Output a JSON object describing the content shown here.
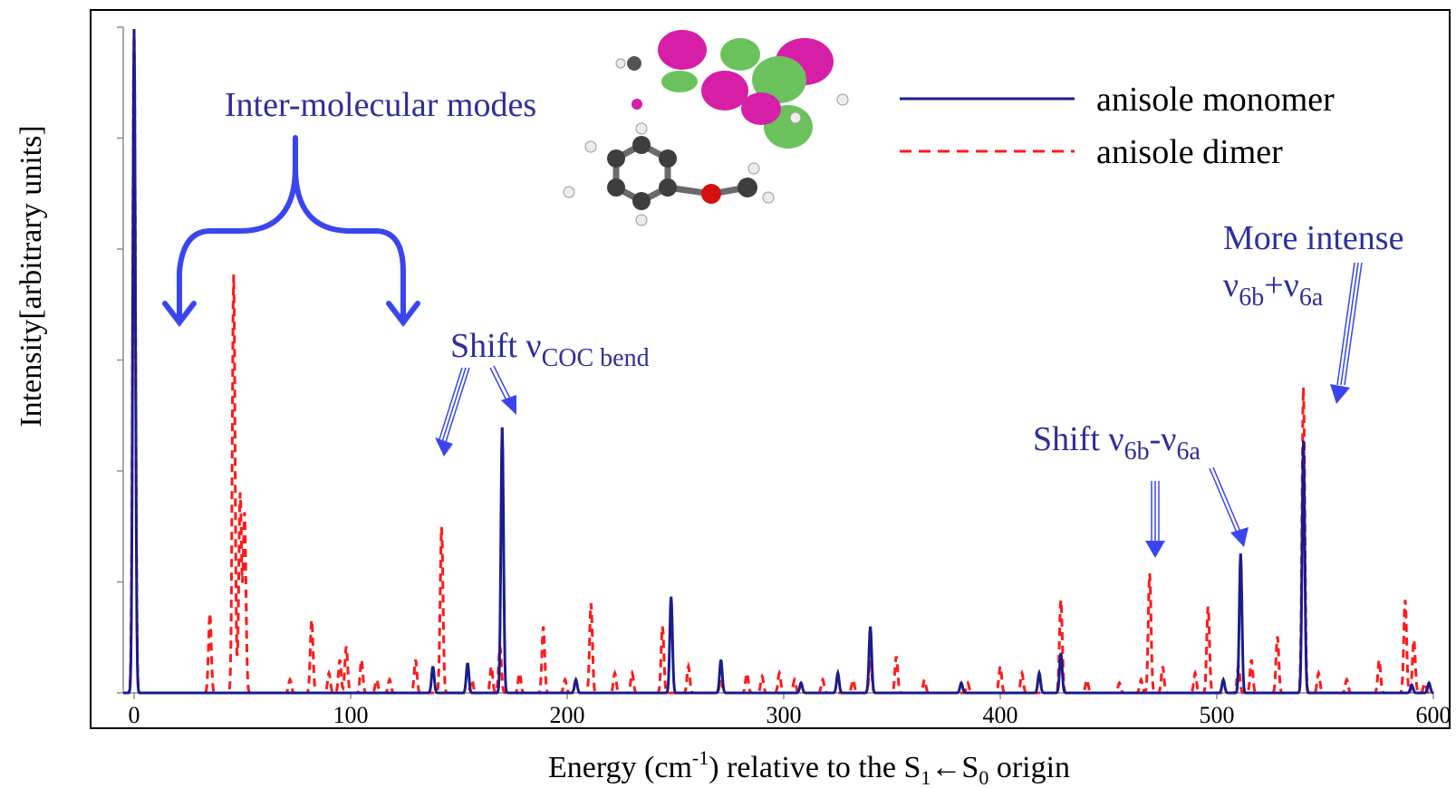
{
  "chart_data": {
    "type": "line",
    "ylabel": "Intensity[arbitrary units]",
    "xlabel": {
      "text": "Energy (cm",
      "sup": "-1",
      "mid": ") relative to the S",
      "sub1": "1",
      "arrow": "←S",
      "sub0": "0",
      "end": " origin"
    },
    "xlim": [
      -5,
      600
    ],
    "ylim": [
      0,
      1.0
    ],
    "xticks": [
      0,
      100,
      200,
      300,
      400,
      500,
      600
    ],
    "grid": false,
    "legend_position": "top-right",
    "series": [
      {
        "name": "anisole monomer",
        "color": "#1c1c8c",
        "dash": "solid",
        "peaks": [
          [
            0,
            1.0
          ],
          [
            138,
            0.04
          ],
          [
            154,
            0.045
          ],
          [
            170,
            0.4
          ],
          [
            204,
            0.02
          ],
          [
            248,
            0.145
          ],
          [
            271,
            0.05
          ],
          [
            308,
            0.015
          ],
          [
            325,
            0.03
          ],
          [
            340,
            0.1
          ],
          [
            382,
            0.015
          ],
          [
            418,
            0.03
          ],
          [
            428,
            0.06
          ],
          [
            503,
            0.02
          ],
          [
            511,
            0.21
          ],
          [
            540,
            0.38
          ],
          [
            590,
            0.012
          ],
          [
            598,
            0.015
          ]
        ]
      },
      {
        "name": "anisole dimer",
        "color": "#ff1a1a",
        "dash": "dashed",
        "peaks": [
          [
            0,
            1.0
          ],
          [
            35,
            0.12
          ],
          [
            46,
            0.63
          ],
          [
            49,
            0.3
          ],
          [
            51,
            0.27
          ],
          [
            72,
            0.02
          ],
          [
            82,
            0.11
          ],
          [
            90,
            0.03
          ],
          [
            95,
            0.05
          ],
          [
            98,
            0.07
          ],
          [
            105,
            0.05
          ],
          [
            112,
            0.02
          ],
          [
            118,
            0.02
          ],
          [
            130,
            0.05
          ],
          [
            142,
            0.25
          ],
          [
            156,
            0.02
          ],
          [
            165,
            0.04
          ],
          [
            169,
            0.07
          ],
          [
            178,
            0.03
          ],
          [
            189,
            0.1
          ],
          [
            199,
            0.02
          ],
          [
            211,
            0.135
          ],
          [
            222,
            0.03
          ],
          [
            230,
            0.03
          ],
          [
            244,
            0.1
          ],
          [
            256,
            0.04
          ],
          [
            271,
            0.02
          ],
          [
            283,
            0.03
          ],
          [
            290,
            0.025
          ],
          [
            298,
            0.03
          ],
          [
            305,
            0.02
          ],
          [
            318,
            0.02
          ],
          [
            332,
            0.02
          ],
          [
            340,
            0.05
          ],
          [
            352,
            0.055
          ],
          [
            365,
            0.02
          ],
          [
            385,
            0.015
          ],
          [
            400,
            0.04
          ],
          [
            410,
            0.03
          ],
          [
            428,
            0.14
          ],
          [
            440,
            0.02
          ],
          [
            455,
            0.015
          ],
          [
            465,
            0.02
          ],
          [
            469,
            0.18
          ],
          [
            475,
            0.04
          ],
          [
            490,
            0.03
          ],
          [
            496,
            0.13
          ],
          [
            510,
            0.04
          ],
          [
            516,
            0.05
          ],
          [
            528,
            0.085
          ],
          [
            540,
            0.46
          ],
          [
            547,
            0.03
          ],
          [
            560,
            0.02
          ],
          [
            575,
            0.05
          ],
          [
            587,
            0.14
          ],
          [
            591,
            0.08
          ],
          [
            596,
            0.015
          ]
        ]
      }
    ],
    "annotations": {
      "inter_molecular": "Inter-molecular modes",
      "shift_coc_main": "Shift ν",
      "shift_coc_sub": "COC bend",
      "shift_6b_main": "Shift ν",
      "shift_6b_sub1": "6b",
      "shift_6b_dash": "-ν",
      "shift_6b_sub2": "6a",
      "more_intense_line1": "More intense",
      "more_intense_nu": "ν",
      "more_intense_sub1": "6b",
      "more_intense_plus": "+ν",
      "more_intense_sub2": "6a"
    },
    "colors": {
      "annotation": "#2e2e9c",
      "bracket": "#3a45f0",
      "frame": "#000000"
    }
  }
}
